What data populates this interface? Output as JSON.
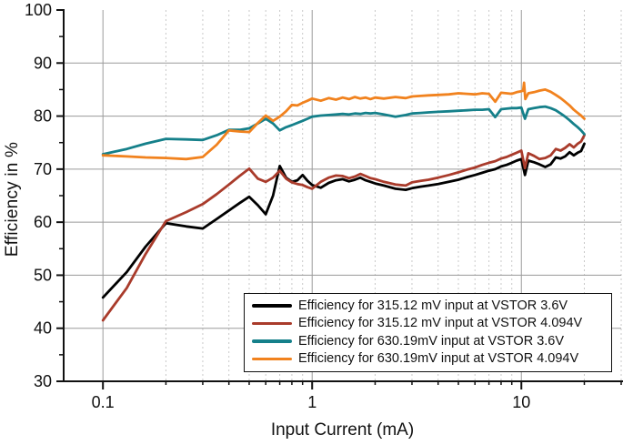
{
  "figure": {
    "xlabel": "Input Current (mA)",
    "ylabel": "Efficiency in %"
  },
  "chart_data": {
    "type": "line",
    "title": "",
    "xlabel": "Input Current (mA)",
    "ylabel": "Efficiency in %",
    "x_scale": "log",
    "xlim": [
      0.0649,
      30
    ],
    "ylim": [
      30,
      100
    ],
    "x_major_ticks": [
      0.1,
      1,
      10
    ],
    "x_major_tick_labels": [
      "0.1",
      "1",
      "10"
    ],
    "x_minor_ticks": [
      0.2,
      0.3,
      0.4,
      0.5,
      0.6,
      0.7,
      0.8,
      0.9,
      2,
      3,
      4,
      5,
      6,
      7,
      8,
      9,
      20,
      30
    ],
    "y_major_ticks": [
      30,
      40,
      50,
      60,
      70,
      80,
      90,
      100
    ],
    "y_major_tick_labels": [
      "30",
      "40",
      "50",
      "60",
      "70",
      "80",
      "90",
      "100"
    ],
    "y_minor_ticks": [
      35,
      45,
      55,
      65,
      75,
      85,
      95
    ],
    "grid": {
      "major_color": "#9a9a9a",
      "minor_color": "#c9c9c9",
      "minor_dash": "2 3"
    },
    "axis_color": "#111111",
    "legend_position": "bottom-right-inside",
    "series": [
      {
        "name": "Efficiency for 315.12 mV input at VSTOR 3.6V",
        "color": "#000000",
        "points": [
          [
            0.1,
            45.8
          ],
          [
            0.13,
            50.6
          ],
          [
            0.16,
            55.4
          ],
          [
            0.2,
            59.8
          ],
          [
            0.25,
            59.2
          ],
          [
            0.3,
            58.8
          ],
          [
            0.35,
            60.6
          ],
          [
            0.4,
            62.2
          ],
          [
            0.45,
            63.6
          ],
          [
            0.5,
            64.8
          ],
          [
            0.55,
            63.2
          ],
          [
            0.6,
            61.5
          ],
          [
            0.65,
            65.0
          ],
          [
            0.7,
            70.6
          ],
          [
            0.75,
            68.4
          ],
          [
            0.8,
            67.6
          ],
          [
            0.85,
            67.9
          ],
          [
            0.9,
            68.9
          ],
          [
            0.95,
            67.8
          ],
          [
            1.0,
            67.0
          ],
          [
            1.1,
            66.5
          ],
          [
            1.2,
            67.4
          ],
          [
            1.3,
            67.9
          ],
          [
            1.4,
            68.1
          ],
          [
            1.5,
            67.7
          ],
          [
            1.6,
            68.0
          ],
          [
            1.7,
            68.4
          ],
          [
            1.8,
            67.9
          ],
          [
            1.9,
            67.6
          ],
          [
            2.0,
            67.3
          ],
          [
            2.2,
            66.9
          ],
          [
            2.5,
            66.3
          ],
          [
            2.8,
            66.1
          ],
          [
            3.0,
            66.4
          ],
          [
            3.3,
            66.7
          ],
          [
            3.6,
            66.9
          ],
          [
            4.0,
            67.2
          ],
          [
            4.5,
            67.6
          ],
          [
            5.0,
            68.0
          ],
          [
            5.5,
            68.5
          ],
          [
            6.0,
            68.9
          ],
          [
            6.5,
            69.3
          ],
          [
            7.0,
            69.7
          ],
          [
            7.5,
            70.0
          ],
          [
            8.0,
            70.5
          ],
          [
            8.5,
            70.8
          ],
          [
            9.0,
            71.2
          ],
          [
            9.5,
            71.6
          ],
          [
            10.0,
            71.9
          ],
          [
            10.4,
            68.9
          ],
          [
            10.8,
            71.6
          ],
          [
            11.5,
            71.3
          ],
          [
            12.2,
            70.9
          ],
          [
            13.0,
            70.4
          ],
          [
            13.8,
            70.9
          ],
          [
            14.6,
            72.2
          ],
          [
            15.4,
            72.0
          ],
          [
            16.2,
            72.4
          ],
          [
            17.0,
            73.2
          ],
          [
            17.8,
            72.6
          ],
          [
            18.6,
            73.1
          ],
          [
            19.3,
            73.4
          ],
          [
            20.0,
            74.8
          ]
        ]
      },
      {
        "name": "Efficiency for 315.12 mV input at VSTOR 4.094V",
        "color": "#a93b2b",
        "points": [
          [
            0.1,
            41.5
          ],
          [
            0.13,
            47.6
          ],
          [
            0.16,
            54.0
          ],
          [
            0.2,
            60.2
          ],
          [
            0.25,
            61.9
          ],
          [
            0.3,
            63.4
          ],
          [
            0.35,
            65.3
          ],
          [
            0.4,
            67.1
          ],
          [
            0.45,
            68.7
          ],
          [
            0.5,
            70.1
          ],
          [
            0.55,
            68.2
          ],
          [
            0.6,
            67.6
          ],
          [
            0.65,
            68.4
          ],
          [
            0.7,
            69.7
          ],
          [
            0.75,
            68.2
          ],
          [
            0.8,
            67.5
          ],
          [
            0.85,
            67.2
          ],
          [
            0.9,
            67.0
          ],
          [
            0.95,
            66.6
          ],
          [
            1.0,
            66.3
          ],
          [
            1.1,
            67.6
          ],
          [
            1.2,
            68.4
          ],
          [
            1.3,
            68.8
          ],
          [
            1.4,
            68.7
          ],
          [
            1.5,
            68.3
          ],
          [
            1.6,
            68.6
          ],
          [
            1.7,
            69.1
          ],
          [
            1.8,
            68.7
          ],
          [
            1.9,
            68.3
          ],
          [
            2.0,
            68.1
          ],
          [
            2.2,
            67.6
          ],
          [
            2.5,
            67.1
          ],
          [
            2.8,
            66.9
          ],
          [
            3.0,
            67.5
          ],
          [
            3.3,
            67.8
          ],
          [
            3.6,
            68.0
          ],
          [
            4.0,
            68.4
          ],
          [
            4.5,
            68.9
          ],
          [
            5.0,
            69.4
          ],
          [
            5.5,
            69.9
          ],
          [
            6.0,
            70.3
          ],
          [
            6.5,
            70.8
          ],
          [
            7.0,
            71.2
          ],
          [
            7.5,
            71.5
          ],
          [
            8.0,
            72.0
          ],
          [
            8.5,
            72.3
          ],
          [
            9.0,
            72.7
          ],
          [
            9.5,
            73.1
          ],
          [
            10.0,
            73.5
          ],
          [
            10.4,
            70.2
          ],
          [
            10.8,
            73.0
          ],
          [
            11.5,
            72.5
          ],
          [
            12.2,
            71.9
          ],
          [
            13.0,
            72.1
          ],
          [
            13.8,
            72.6
          ],
          [
            14.6,
            73.8
          ],
          [
            15.4,
            73.5
          ],
          [
            16.2,
            74.0
          ],
          [
            17.0,
            74.7
          ],
          [
            17.8,
            74.1
          ],
          [
            18.6,
            74.8
          ],
          [
            19.3,
            75.2
          ],
          [
            20.0,
            76.4
          ]
        ]
      },
      {
        "name": "Efficiency for 630.19mV input at VSTOR 3.6V",
        "color": "#15808a",
        "points": [
          [
            0.1,
            72.8
          ],
          [
            0.13,
            73.8
          ],
          [
            0.16,
            74.8
          ],
          [
            0.2,
            75.7
          ],
          [
            0.25,
            75.6
          ],
          [
            0.3,
            75.5
          ],
          [
            0.35,
            76.4
          ],
          [
            0.4,
            77.4
          ],
          [
            0.45,
            77.4
          ],
          [
            0.5,
            77.7
          ],
          [
            0.55,
            78.6
          ],
          [
            0.6,
            79.5
          ],
          [
            0.65,
            78.6
          ],
          [
            0.7,
            77.3
          ],
          [
            0.75,
            77.9
          ],
          [
            0.8,
            78.3
          ],
          [
            0.85,
            78.7
          ],
          [
            0.9,
            79.1
          ],
          [
            0.95,
            79.5
          ],
          [
            1.0,
            79.9
          ],
          [
            1.1,
            80.1
          ],
          [
            1.2,
            80.2
          ],
          [
            1.3,
            80.3
          ],
          [
            1.4,
            80.4
          ],
          [
            1.5,
            80.3
          ],
          [
            1.6,
            80.5
          ],
          [
            1.7,
            80.4
          ],
          [
            1.8,
            80.6
          ],
          [
            1.9,
            80.5
          ],
          [
            2.0,
            80.6
          ],
          [
            2.2,
            80.3
          ],
          [
            2.5,
            79.9
          ],
          [
            2.8,
            80.2
          ],
          [
            3.0,
            80.5
          ],
          [
            3.3,
            80.6
          ],
          [
            3.6,
            80.7
          ],
          [
            4.0,
            80.8
          ],
          [
            4.5,
            80.9
          ],
          [
            5.0,
            81.0
          ],
          [
            5.5,
            81.1
          ],
          [
            6.0,
            81.2
          ],
          [
            6.5,
            81.2
          ],
          [
            7.0,
            81.3
          ],
          [
            7.5,
            79.8
          ],
          [
            8.0,
            81.3
          ],
          [
            8.5,
            81.4
          ],
          [
            9.0,
            81.5
          ],
          [
            9.5,
            81.5
          ],
          [
            10.0,
            81.6
          ],
          [
            10.4,
            79.5
          ],
          [
            10.8,
            81.3
          ],
          [
            11.5,
            81.5
          ],
          [
            12.2,
            81.7
          ],
          [
            13.0,
            81.8
          ],
          [
            13.8,
            81.5
          ],
          [
            14.6,
            81.1
          ],
          [
            15.4,
            80.5
          ],
          [
            16.2,
            79.9
          ],
          [
            17.0,
            79.2
          ],
          [
            17.8,
            78.5
          ],
          [
            18.6,
            77.9
          ],
          [
            19.3,
            77.3
          ],
          [
            20.0,
            76.6
          ]
        ]
      },
      {
        "name": "Efficiency for 630.19mV input at VSTOR 4.094V",
        "color": "#f1821e",
        "points": [
          [
            0.1,
            72.6
          ],
          [
            0.13,
            72.4
          ],
          [
            0.16,
            72.2
          ],
          [
            0.2,
            72.1
          ],
          [
            0.25,
            71.9
          ],
          [
            0.3,
            72.3
          ],
          [
            0.35,
            74.6
          ],
          [
            0.4,
            77.3
          ],
          [
            0.45,
            77.1
          ],
          [
            0.5,
            77.0
          ],
          [
            0.55,
            78.7
          ],
          [
            0.6,
            80.1
          ],
          [
            0.65,
            79.1
          ],
          [
            0.7,
            79.9
          ],
          [
            0.75,
            80.9
          ],
          [
            0.8,
            82.1
          ],
          [
            0.85,
            82.0
          ],
          [
            0.9,
            82.5
          ],
          [
            0.95,
            82.9
          ],
          [
            1.0,
            83.3
          ],
          [
            1.1,
            82.9
          ],
          [
            1.2,
            83.4
          ],
          [
            1.3,
            83.1
          ],
          [
            1.4,
            83.5
          ],
          [
            1.5,
            83.2
          ],
          [
            1.6,
            83.6
          ],
          [
            1.7,
            83.3
          ],
          [
            1.8,
            83.5
          ],
          [
            1.9,
            83.2
          ],
          [
            2.0,
            83.5
          ],
          [
            2.2,
            83.3
          ],
          [
            2.5,
            83.6
          ],
          [
            2.8,
            83.4
          ],
          [
            3.0,
            83.7
          ],
          [
            3.3,
            83.8
          ],
          [
            3.6,
            83.9
          ],
          [
            4.0,
            84.0
          ],
          [
            4.5,
            84.1
          ],
          [
            5.0,
            84.3
          ],
          [
            5.5,
            84.2
          ],
          [
            6.0,
            84.1
          ],
          [
            6.5,
            84.3
          ],
          [
            7.0,
            84.2
          ],
          [
            7.5,
            82.7
          ],
          [
            8.0,
            84.4
          ],
          [
            8.5,
            84.3
          ],
          [
            9.0,
            84.2
          ],
          [
            9.5,
            84.5
          ],
          [
            10.0,
            84.7
          ],
          [
            10.2,
            84.8
          ],
          [
            10.3,
            86.3
          ],
          [
            10.45,
            83.2
          ],
          [
            10.8,
            84.3
          ],
          [
            11.5,
            84.5
          ],
          [
            12.2,
            84.8
          ],
          [
            13.0,
            85.0
          ],
          [
            13.8,
            84.6
          ],
          [
            14.6,
            84.0
          ],
          [
            15.4,
            83.4
          ],
          [
            16.2,
            82.7
          ],
          [
            17.0,
            82.0
          ],
          [
            17.8,
            81.2
          ],
          [
            18.6,
            80.6
          ],
          [
            19.3,
            80.1
          ],
          [
            20.0,
            79.5
          ]
        ]
      }
    ]
  }
}
